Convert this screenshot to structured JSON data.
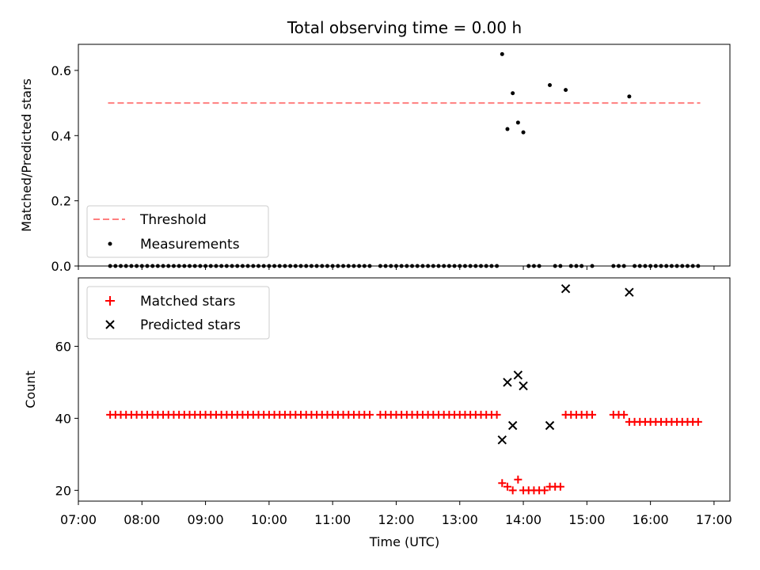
{
  "chart_data": [
    {
      "type": "scatter",
      "title": "Total observing time = 0.00 h",
      "ylabel": "Matched/Predicted stars",
      "ylim": [
        0,
        0.68
      ],
      "y_ticks": [
        "0.0",
        "0.2",
        "0.4",
        "0.6"
      ],
      "legend_position": "lower-left",
      "threshold": {
        "name": "Threshold",
        "color": "#ff7f7f",
        "style": "dashed",
        "value": 0.5,
        "x_range": [
          "07:28",
          "16:47"
        ]
      },
      "series": [
        {
          "name": "Measurements",
          "color": "#000000",
          "marker": "dot",
          "points": [
            {
              "x": "13:40",
              "y": 0.65
            },
            {
              "x": "13:45",
              "y": 0.42
            },
            {
              "x": "13:50",
              "y": 0.53
            },
            {
              "x": "13:55",
              "y": 0.44
            },
            {
              "x": "14:00",
              "y": 0.41
            },
            {
              "x": "14:25",
              "y": 0.555
            },
            {
              "x": "14:40",
              "y": 0.54
            },
            {
              "x": "15:40",
              "y": 0.52
            }
          ],
          "zero_points_x": [
            "07:30",
            "07:35",
            "07:40",
            "07:45",
            "07:50",
            "07:55",
            "08:00",
            "08:05",
            "08:10",
            "08:15",
            "08:20",
            "08:25",
            "08:30",
            "08:35",
            "08:40",
            "08:45",
            "08:50",
            "08:55",
            "09:00",
            "09:05",
            "09:10",
            "09:15",
            "09:20",
            "09:25",
            "09:30",
            "09:35",
            "09:40",
            "09:45",
            "09:50",
            "09:55",
            "10:00",
            "10:05",
            "10:10",
            "10:15",
            "10:20",
            "10:25",
            "10:30",
            "10:35",
            "10:40",
            "10:45",
            "10:50",
            "10:55",
            "11:00",
            "11:05",
            "11:10",
            "11:15",
            "11:20",
            "11:25",
            "11:30",
            "11:35",
            "11:45",
            "11:50",
            "11:55",
            "12:00",
            "12:05",
            "12:10",
            "12:15",
            "12:20",
            "12:25",
            "12:30",
            "12:35",
            "12:40",
            "12:45",
            "12:50",
            "12:55",
            "13:00",
            "13:05",
            "13:10",
            "13:15",
            "13:20",
            "13:25",
            "13:30",
            "13:35",
            "14:05",
            "14:10",
            "14:15",
            "14:30",
            "14:35",
            "14:45",
            "14:50",
            "14:55",
            "15:05",
            "15:25",
            "15:30",
            "15:35",
            "15:45",
            "15:50",
            "15:55",
            "16:00",
            "16:05",
            "16:10",
            "16:15",
            "16:20",
            "16:25",
            "16:30",
            "16:35",
            "16:40",
            "16:45"
          ]
        }
      ]
    },
    {
      "type": "scatter",
      "title": "",
      "xlabel": "Time (UTC)",
      "ylabel": "Count",
      "ylim": [
        17,
        79
      ],
      "xlim": [
        "07:00",
        "17:15"
      ],
      "x_ticks": [
        "07:00",
        "08:00",
        "09:00",
        "10:00",
        "11:00",
        "12:00",
        "13:00",
        "14:00",
        "15:00",
        "16:00",
        "17:00"
      ],
      "y_ticks": [
        "20",
        "40",
        "60"
      ],
      "legend_position": "upper-left",
      "series": [
        {
          "name": "Matched stars",
          "color": "#ff0000",
          "marker": "plus",
          "points": [
            {
              "x": "07:30",
              "y": 41
            },
            {
              "x": "07:35",
              "y": 41
            },
            {
              "x": "07:40",
              "y": 41
            },
            {
              "x": "07:45",
              "y": 41
            },
            {
              "x": "07:50",
              "y": 41
            },
            {
              "x": "07:55",
              "y": 41
            },
            {
              "x": "08:00",
              "y": 41
            },
            {
              "x": "08:05",
              "y": 41
            },
            {
              "x": "08:10",
              "y": 41
            },
            {
              "x": "08:15",
              "y": 41
            },
            {
              "x": "08:20",
              "y": 41
            },
            {
              "x": "08:25",
              "y": 41
            },
            {
              "x": "08:30",
              "y": 41
            },
            {
              "x": "08:35",
              "y": 41
            },
            {
              "x": "08:40",
              "y": 41
            },
            {
              "x": "08:45",
              "y": 41
            },
            {
              "x": "08:50",
              "y": 41
            },
            {
              "x": "08:55",
              "y": 41
            },
            {
              "x": "09:00",
              "y": 41
            },
            {
              "x": "09:05",
              "y": 41
            },
            {
              "x": "09:10",
              "y": 41
            },
            {
              "x": "09:15",
              "y": 41
            },
            {
              "x": "09:20",
              "y": 41
            },
            {
              "x": "09:25",
              "y": 41
            },
            {
              "x": "09:30",
              "y": 41
            },
            {
              "x": "09:35",
              "y": 41
            },
            {
              "x": "09:40",
              "y": 41
            },
            {
              "x": "09:45",
              "y": 41
            },
            {
              "x": "09:50",
              "y": 41
            },
            {
              "x": "09:55",
              "y": 41
            },
            {
              "x": "10:00",
              "y": 41
            },
            {
              "x": "10:05",
              "y": 41
            },
            {
              "x": "10:10",
              "y": 41
            },
            {
              "x": "10:15",
              "y": 41
            },
            {
              "x": "10:20",
              "y": 41
            },
            {
              "x": "10:25",
              "y": 41
            },
            {
              "x": "10:30",
              "y": 41
            },
            {
              "x": "10:35",
              "y": 41
            },
            {
              "x": "10:40",
              "y": 41
            },
            {
              "x": "10:45",
              "y": 41
            },
            {
              "x": "10:50",
              "y": 41
            },
            {
              "x": "10:55",
              "y": 41
            },
            {
              "x": "11:00",
              "y": 41
            },
            {
              "x": "11:05",
              "y": 41
            },
            {
              "x": "11:10",
              "y": 41
            },
            {
              "x": "11:15",
              "y": 41
            },
            {
              "x": "11:20",
              "y": 41
            },
            {
              "x": "11:25",
              "y": 41
            },
            {
              "x": "11:30",
              "y": 41
            },
            {
              "x": "11:35",
              "y": 41
            },
            {
              "x": "11:45",
              "y": 41
            },
            {
              "x": "11:50",
              "y": 41
            },
            {
              "x": "11:55",
              "y": 41
            },
            {
              "x": "12:00",
              "y": 41
            },
            {
              "x": "12:05",
              "y": 41
            },
            {
              "x": "12:10",
              "y": 41
            },
            {
              "x": "12:15",
              "y": 41
            },
            {
              "x": "12:20",
              "y": 41
            },
            {
              "x": "12:25",
              "y": 41
            },
            {
              "x": "12:30",
              "y": 41
            },
            {
              "x": "12:35",
              "y": 41
            },
            {
              "x": "12:40",
              "y": 41
            },
            {
              "x": "12:45",
              "y": 41
            },
            {
              "x": "12:50",
              "y": 41
            },
            {
              "x": "12:55",
              "y": 41
            },
            {
              "x": "13:00",
              "y": 41
            },
            {
              "x": "13:05",
              "y": 41
            },
            {
              "x": "13:10",
              "y": 41
            },
            {
              "x": "13:15",
              "y": 41
            },
            {
              "x": "13:20",
              "y": 41
            },
            {
              "x": "13:25",
              "y": 41
            },
            {
              "x": "13:30",
              "y": 41
            },
            {
              "x": "13:35",
              "y": 41
            },
            {
              "x": "13:40",
              "y": 22
            },
            {
              "x": "13:45",
              "y": 21
            },
            {
              "x": "13:50",
              "y": 20
            },
            {
              "x": "13:55",
              "y": 23
            },
            {
              "x": "14:00",
              "y": 20
            },
            {
              "x": "14:05",
              "y": 20
            },
            {
              "x": "14:10",
              "y": 20
            },
            {
              "x": "14:15",
              "y": 20
            },
            {
              "x": "14:20",
              "y": 20
            },
            {
              "x": "14:25",
              "y": 21
            },
            {
              "x": "14:30",
              "y": 21
            },
            {
              "x": "14:35",
              "y": 21
            },
            {
              "x": "14:40",
              "y": 41
            },
            {
              "x": "14:45",
              "y": 41
            },
            {
              "x": "14:50",
              "y": 41
            },
            {
              "x": "14:55",
              "y": 41
            },
            {
              "x": "15:00",
              "y": 41
            },
            {
              "x": "15:05",
              "y": 41
            },
            {
              "x": "15:25",
              "y": 41
            },
            {
              "x": "15:30",
              "y": 41
            },
            {
              "x": "15:35",
              "y": 41
            },
            {
              "x": "15:40",
              "y": 39
            },
            {
              "x": "15:45",
              "y": 39
            },
            {
              "x": "15:50",
              "y": 39
            },
            {
              "x": "15:55",
              "y": 39
            },
            {
              "x": "16:00",
              "y": 39
            },
            {
              "x": "16:05",
              "y": 39
            },
            {
              "x": "16:10",
              "y": 39
            },
            {
              "x": "16:15",
              "y": 39
            },
            {
              "x": "16:20",
              "y": 39
            },
            {
              "x": "16:25",
              "y": 39
            },
            {
              "x": "16:30",
              "y": 39
            },
            {
              "x": "16:35",
              "y": 39
            },
            {
              "x": "16:40",
              "y": 39
            },
            {
              "x": "16:45",
              "y": 39
            }
          ]
        },
        {
          "name": "Predicted stars",
          "color": "#000000",
          "marker": "x",
          "points": [
            {
              "x": "13:40",
              "y": 34
            },
            {
              "x": "13:45",
              "y": 50
            },
            {
              "x": "13:50",
              "y": 38
            },
            {
              "x": "13:55",
              "y": 52
            },
            {
              "x": "14:00",
              "y": 49
            },
            {
              "x": "14:25",
              "y": 38
            },
            {
              "x": "14:40",
              "y": 76
            },
            {
              "x": "15:40",
              "y": 75
            }
          ]
        }
      ]
    }
  ]
}
